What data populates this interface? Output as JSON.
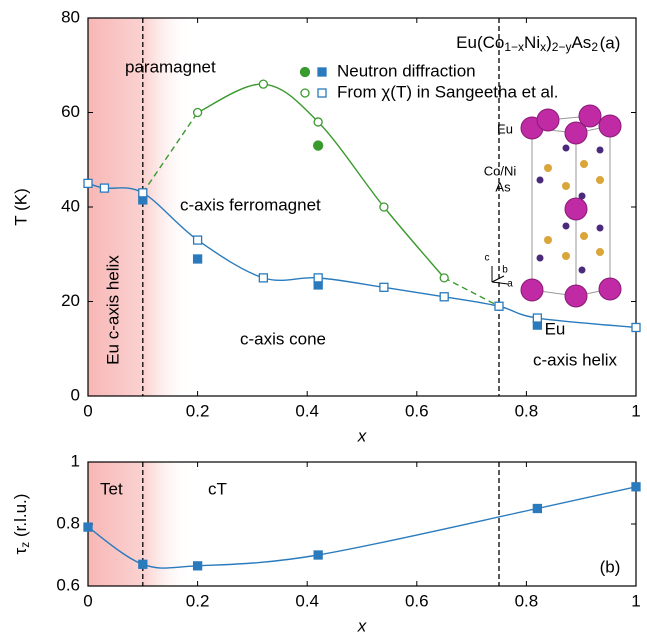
{
  "chart_data": [
    {
      "type": "scatter",
      "panel_label": "(a)",
      "formula": [
        "Eu(Co",
        "1−x",
        "Ni",
        "x",
        ")",
        "2−y",
        "As",
        "2"
      ],
      "xlabel": "x",
      "ylabel": "T (K)",
      "xlim": [
        0,
        1
      ],
      "xticks": [
        0,
        0.2,
        0.4,
        0.6,
        0.8,
        1
      ],
      "ylim": [
        0,
        80
      ],
      "yticks": [
        0,
        20,
        40,
        60,
        80
      ],
      "shade_xlim": [
        0,
        0.19
      ],
      "shade_color": "#f7b7b5",
      "phase_boundaries": [
        0.1,
        0.75
      ],
      "annotations": [
        "paramagnet",
        "c-axis ferromagnet",
        "c-axis cone",
        "Eu c-axis helix",
        "Eu",
        "c-axis helix"
      ],
      "inset_labels": [
        "Eu",
        "Co/Ni",
        "As",
        "c",
        "b",
        "a"
      ],
      "series": [
        {
          "name": "Neutron diffraction",
          "filled": true,
          "markers": [
            {
              "shape": "circle",
              "color": "#3a9a2e",
              "x": [
                0.42
              ],
              "values": [
                53
              ]
            },
            {
              "shape": "square",
              "color": "#2a7bbd",
              "x": [
                0.1,
                0.2,
                0.42,
                0.82
              ],
              "values": [
                41.5,
                29,
                23.5,
                15
              ]
            }
          ]
        },
        {
          "name": "From χ(T) in Sangeetha et al.",
          "filled": false,
          "markers": [
            {
              "shape": "circle",
              "color": "#3a9a2e",
              "x": [
                0.2,
                0.32,
                0.42,
                0.54,
                0.65
              ],
              "values": [
                60,
                66,
                58,
                40,
                25
              ]
            },
            {
              "shape": "square",
              "color": "#2a7bbd",
              "x": [
                0,
                0.03,
                0.1,
                0.2,
                0.32,
                0.42,
                0.54,
                0.65,
                0.75,
                0.82,
                1
              ],
              "values": [
                45,
                44,
                43,
                33,
                25,
                25,
                23,
                21,
                19,
                16.5,
                14.5
              ]
            }
          ]
        }
      ]
    },
    {
      "type": "line",
      "panel_label": "(b)",
      "xlabel": "x",
      "ylabel": [
        "τ",
        "z",
        " (r.l.u.)"
      ],
      "xlim": [
        0,
        1
      ],
      "xticks": [
        0,
        0.2,
        0.4,
        0.6,
        0.8,
        1
      ],
      "ylim": [
        0.6,
        1
      ],
      "yticks": [
        0.6,
        0.8,
        1
      ],
      "shade_xlim": [
        0,
        0.19
      ],
      "shade_color": "#f7b7b5",
      "phase_boundaries": [
        0.1,
        0.75
      ],
      "annotations": [
        "Tet",
        "cT"
      ],
      "color": "#2a7bbd",
      "x": [
        0,
        0.1,
        0.2,
        0.42,
        0.82,
        1
      ],
      "values": [
        0.79,
        0.67,
        0.665,
        0.7,
        0.85,
        0.92
      ]
    }
  ]
}
